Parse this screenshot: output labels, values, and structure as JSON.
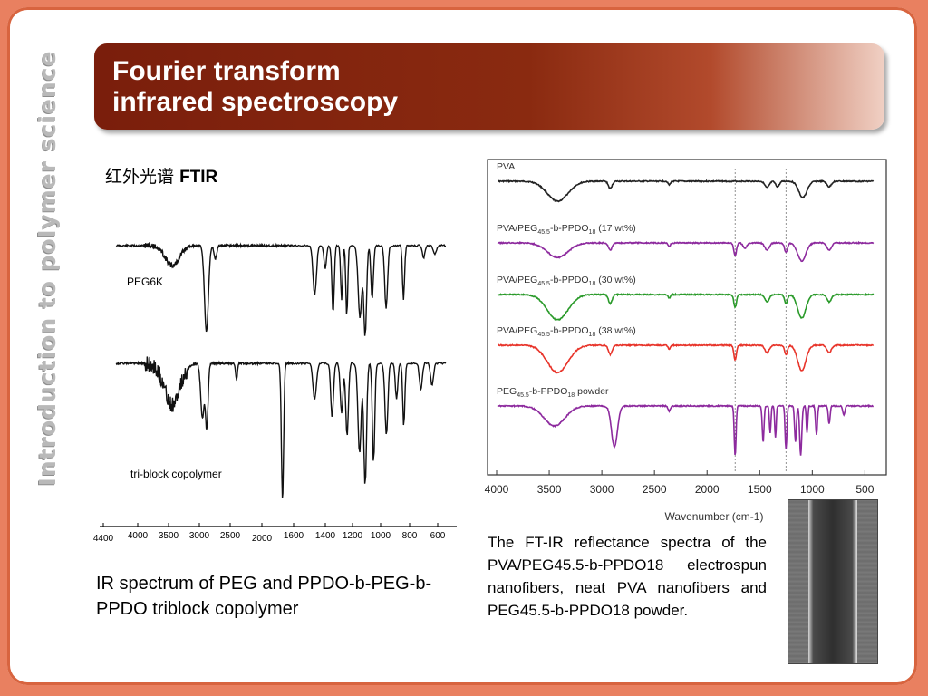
{
  "slide": {
    "side_title": "Introduction to polymer science",
    "title_line1": "Fourier transform",
    "title_line2": "infrared spectroscopy",
    "ftir_cn": "红外光谱",
    "ftir_en": "FTIR",
    "left_caption": "IR spectrum of PEG and PPDO-b-PEG-b-PPDO triblock copolymer",
    "right_caption": "The FT-IR reflectance spectra of the PVA/PEG45.5-b-PPDO18 electrospun nanofibers, neat PVA nanofibers and PEG45.5-b-PPDO18 powder.",
    "colors": {
      "title_bar": "#8a2a10",
      "border": "#e98060"
    }
  },
  "chart_data": [
    {
      "type": "line",
      "x_ticks": [
        "4400",
        "4000",
        "3500",
        "3000",
        "2500",
        "2000",
        "1600",
        "1400",
        "1200",
        "1000",
        "800",
        "600"
      ],
      "series": [
        {
          "name": "PEG6K",
          "absorption_bands": [
            3440,
            2885,
            1467,
            1343,
            1280,
            1242,
            1110,
            962,
            842
          ]
        },
        {
          "name": "tri-block copolymer",
          "absorption_bands": [
            3440,
            2950,
            2880,
            1740,
            1467,
            1350,
            1240,
            1110,
            1050,
            960,
            840
          ]
        }
      ],
      "xlim": [
        4400,
        400
      ],
      "grid": false
    },
    {
      "type": "line",
      "xlabel": "Wavenumber (cm-1)",
      "x_ticks": [
        4000,
        3500,
        3000,
        2500,
        2000,
        1500,
        1000,
        500
      ],
      "xlim": [
        4000,
        400
      ],
      "reference_lines": [
        1733,
        1250
      ],
      "series": [
        {
          "name": "PVA",
          "color": "#222222",
          "label_parts": [
            "PVA"
          ],
          "bands": [
            3400,
            2920,
            1430,
            1090
          ]
        },
        {
          "name": "PVA/PEG45.5-b-PPDO18 (17 wt%)",
          "color": "#8d2a9e",
          "label_parts": [
            "PVA/PEG",
            "45.5",
            "-b-PPDO",
            "18",
            " (17 wt%)"
          ],
          "bands": [
            3400,
            2920,
            1733,
            1430,
            1250,
            1100
          ]
        },
        {
          "name": "PVA/PEG45.5-b-PPDO18 (30 wt%)",
          "color": "#2a9a2a",
          "label_parts": [
            "PVA/PEG",
            "45.5",
            "-b-PPDO",
            "18",
            " (30 wt%)"
          ],
          "bands": [
            3400,
            2920,
            1733,
            1430,
            1250,
            1100
          ]
        },
        {
          "name": "PVA/PEG45.5-b-PPDO18 (38 wt%)",
          "color": "#e8342a",
          "label_parts": [
            "PVA/PEG",
            "45.5",
            "-b-PPDO",
            "18",
            " (38 wt%)"
          ],
          "bands": [
            3400,
            2920,
            1733,
            1430,
            1250,
            1100
          ]
        },
        {
          "name": "PEG45.5-b-PPDO18 powder",
          "color": "#8d2a9e",
          "label_parts": [
            "PEG",
            "45.5",
            "-b-PPDO",
            "18",
            "  powder"
          ],
          "bands": [
            3450,
            2880,
            1733,
            1467,
            1350,
            1250,
            1110,
            960,
            840
          ]
        }
      ]
    }
  ]
}
